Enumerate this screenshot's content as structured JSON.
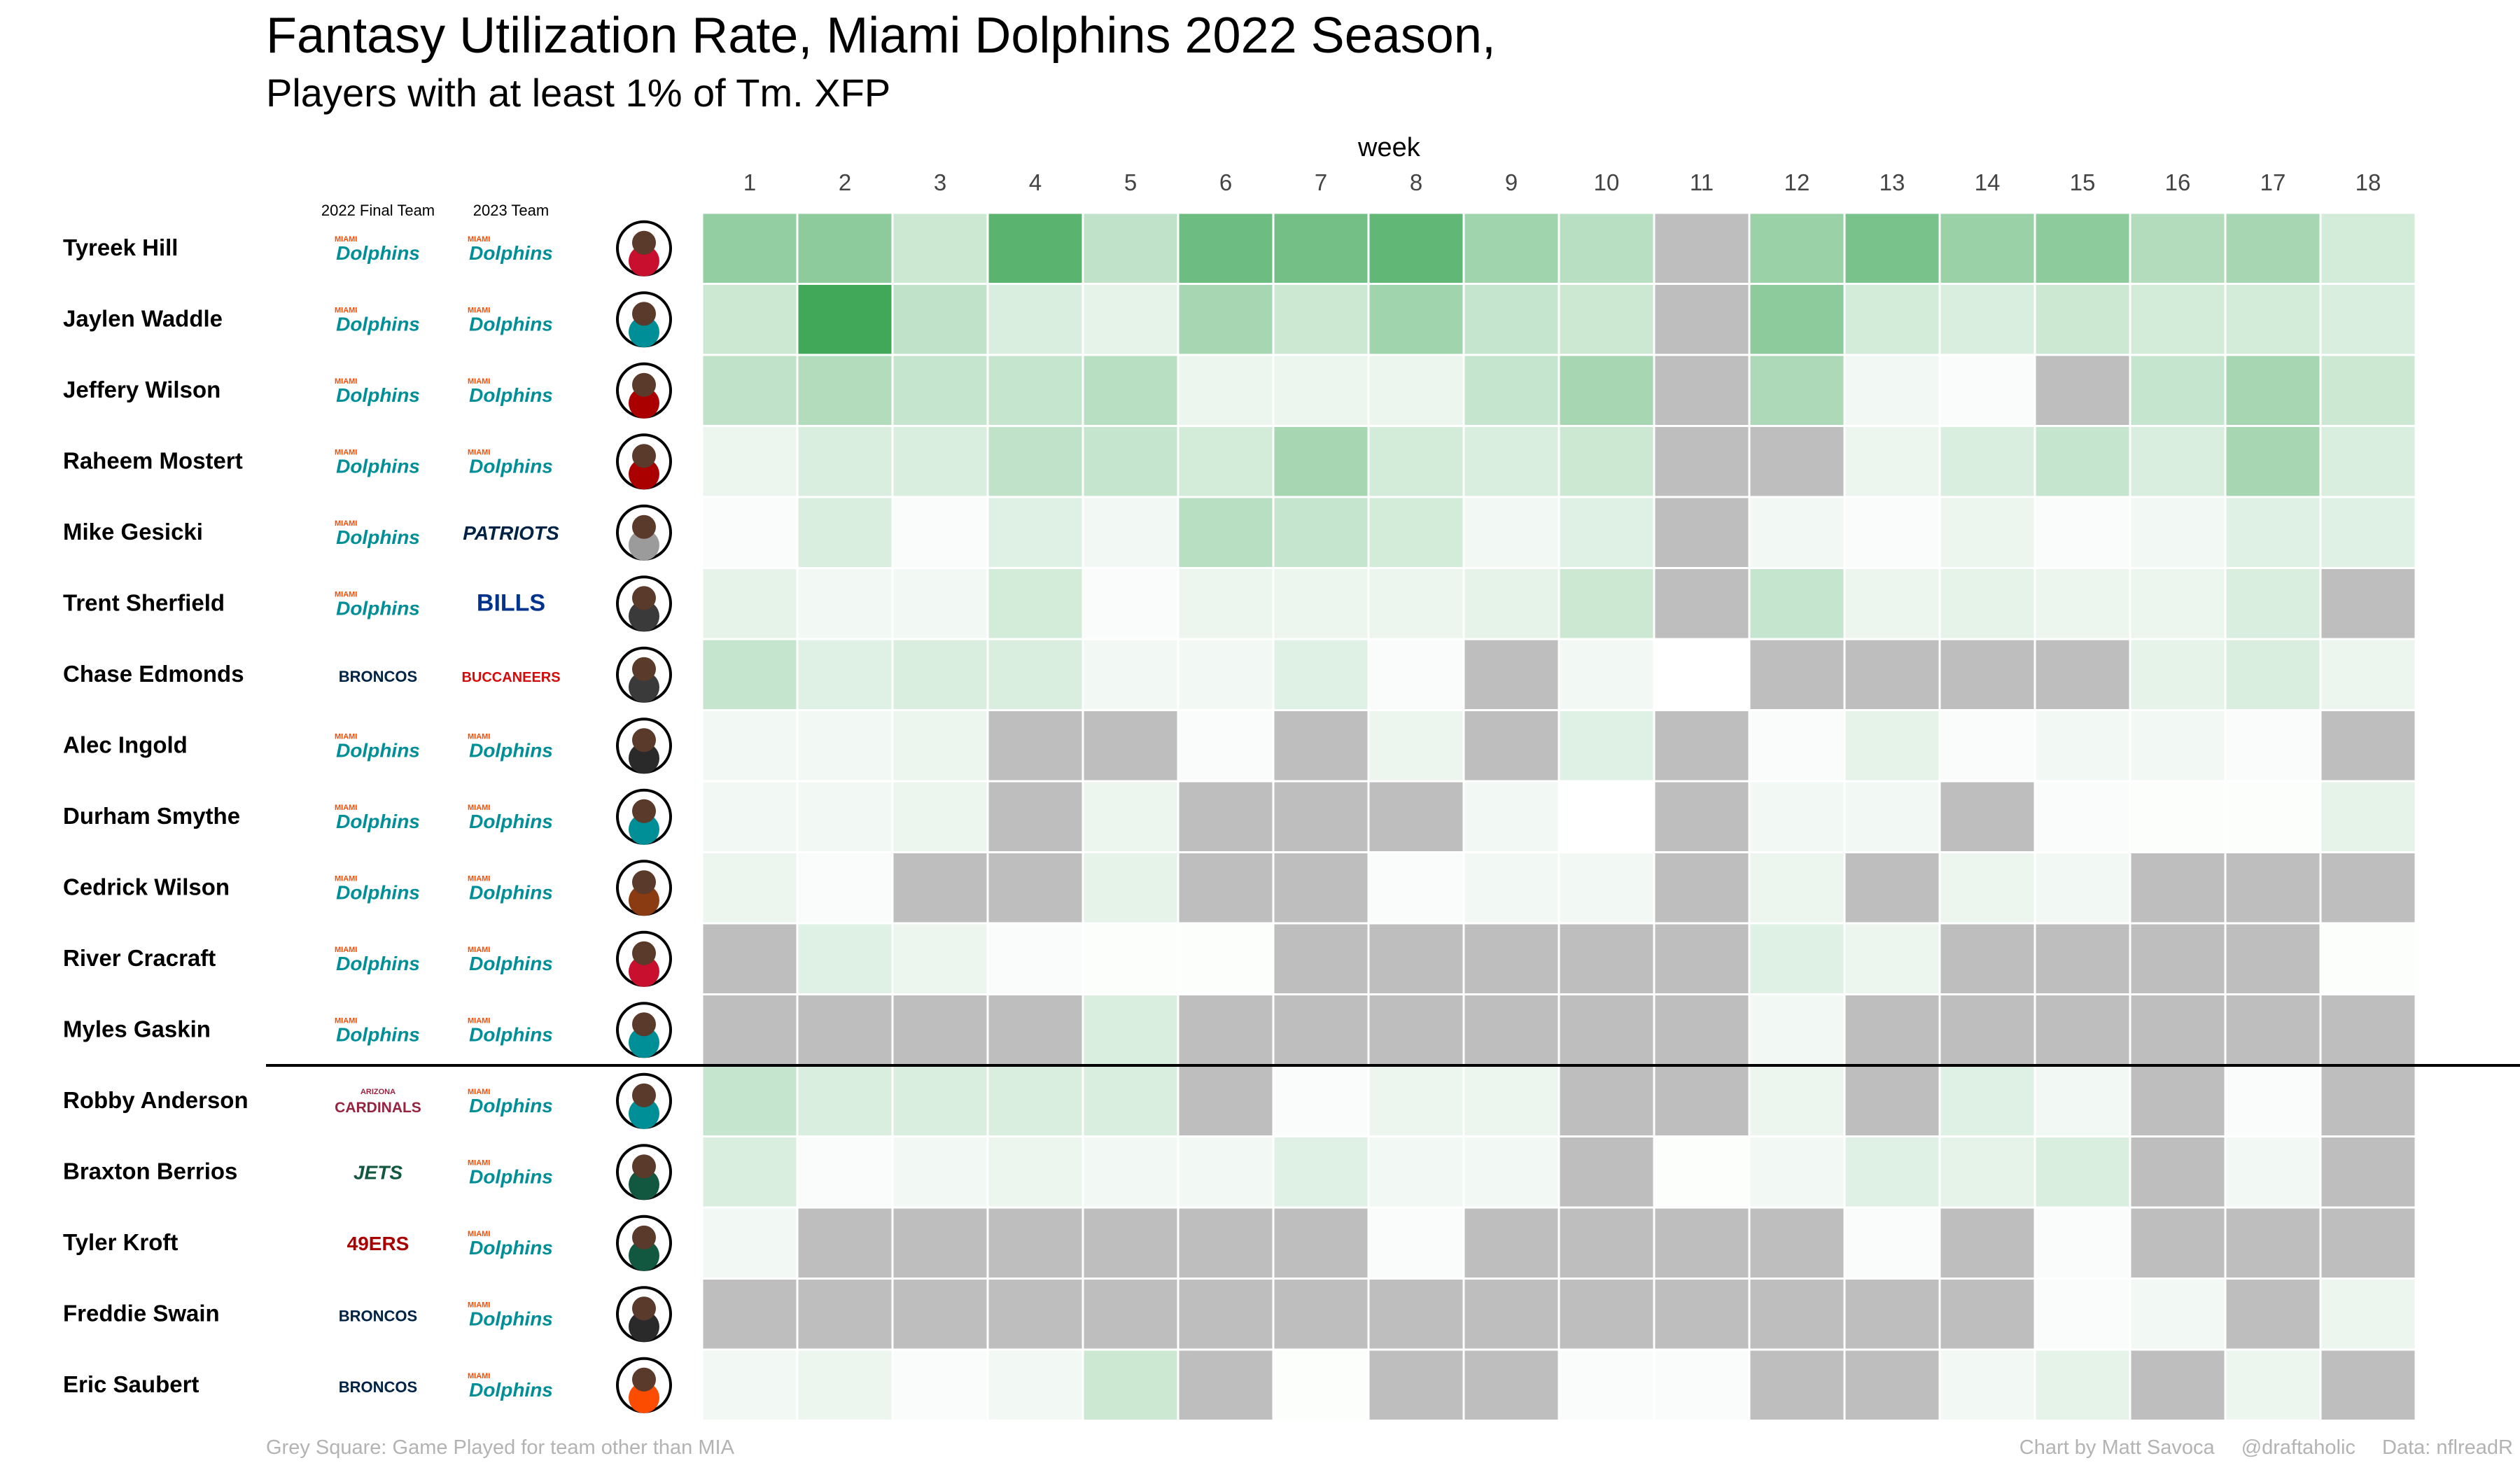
{
  "title": "Fantasy Utilization Rate, Miami Dolphins 2022 Season,",
  "subtitle": "Players with at least 1% of Tm. XFP",
  "column_headers": {
    "final_team": "2022 Final Team",
    "team_2023": "2023 Team"
  },
  "footer": {
    "note": "Grey Square: Game Played for team other than MIA",
    "credit": "Chart by Matt Savoca",
    "handle": "@draftaholic",
    "source": "Data: nflreadR"
  },
  "colors": {
    "na": "#bebebe",
    "low": "#ffffff",
    "high": "#41a85a",
    "dolphins": "#008e97",
    "dolphins_orange": "#fc4c02",
    "patriots": "#002244",
    "bills": "#00338d",
    "broncos": "#002244",
    "buccaneers": "#d50a0a",
    "cardinals": "#97233f",
    "jets": "#125740",
    "niners": "#aa0000"
  },
  "chart_data": {
    "type": "heatmap",
    "xlabel": "week",
    "ylabel": "",
    "categories": [
      "1",
      "2",
      "3",
      "4",
      "5",
      "6",
      "7",
      "8",
      "9",
      "10",
      "11",
      "12",
      "13",
      "14",
      "15",
      "16",
      "17",
      "18"
    ],
    "scale_max": 0.3,
    "rows": [
      {
        "name": "Tyreek Hill",
        "team_2022": "Dolphins",
        "team_2023": "Dolphins",
        "headshot_bg": "#c8102e",
        "values": [
          0.17,
          0.18,
          0.08,
          0.26,
          0.1,
          0.23,
          0.22,
          0.25,
          0.15,
          0.11,
          null,
          0.16,
          0.21,
          0.16,
          0.18,
          0.12,
          0.14,
          0.07
        ]
      },
      {
        "name": "Jaylen Waddle",
        "team_2022": "Dolphins",
        "team_2023": "Dolphins",
        "headshot_bg": "#008e97",
        "values": [
          0.08,
          0.3,
          0.1,
          0.06,
          0.04,
          0.14,
          0.08,
          0.15,
          0.09,
          0.08,
          null,
          0.18,
          0.07,
          0.06,
          0.08,
          0.07,
          0.07,
          0.06
        ]
      },
      {
        "name": "Jeffery Wilson",
        "team_2022": "Dolphins",
        "team_2023": "Dolphins",
        "headshot_bg": "#aa0000",
        "values": [
          0.1,
          0.12,
          0.09,
          0.09,
          0.11,
          0.03,
          0.03,
          0.03,
          0.09,
          0.14,
          null,
          0.13,
          0.02,
          0.01,
          null,
          0.09,
          0.14,
          0.08
        ]
      },
      {
        "name": "Raheem Mostert",
        "team_2022": "Dolphins",
        "team_2023": "Dolphins",
        "headshot_bg": "#aa0000",
        "values": [
          0.03,
          0.06,
          0.06,
          0.1,
          0.09,
          0.07,
          0.14,
          0.07,
          0.06,
          0.08,
          null,
          null,
          0.03,
          0.06,
          0.09,
          0.06,
          0.14,
          0.06
        ]
      },
      {
        "name": "Mike Gesicki",
        "team_2022": "Dolphins",
        "team_2023": "Patriots",
        "headshot_bg": "#9b9b9b",
        "values": [
          0.01,
          0.06,
          0.01,
          0.05,
          0.02,
          0.11,
          0.09,
          0.07,
          0.02,
          0.05,
          null,
          0.02,
          0.01,
          0.03,
          0.01,
          0.02,
          0.05,
          0.05
        ]
      },
      {
        "name": "Trent Sherfield",
        "team_2022": "Dolphins",
        "team_2023": "Bills",
        "headshot_bg": "#3a3a3a",
        "values": [
          0.04,
          0.02,
          0.02,
          0.07,
          0.01,
          0.03,
          0.03,
          0.03,
          0.04,
          0.08,
          null,
          0.09,
          0.03,
          0.04,
          0.03,
          0.03,
          0.06,
          null
        ]
      },
      {
        "name": "Chase Edmonds",
        "team_2022": "Broncos",
        "team_2023": "Buccaneers",
        "headshot_bg": "#3a3a3a",
        "values": [
          0.09,
          0.05,
          0.06,
          0.06,
          0.02,
          0.02,
          0.05,
          0.01,
          null,
          0.02,
          0.0,
          null,
          null,
          null,
          null,
          0.04,
          0.06,
          0.03
        ]
      },
      {
        "name": "Alec Ingold",
        "team_2022": "Dolphins",
        "team_2023": "Dolphins",
        "headshot_bg": "#2a2a2a",
        "values": [
          0.02,
          0.02,
          0.03,
          null,
          null,
          0.01,
          null,
          0.03,
          null,
          0.05,
          null,
          0.01,
          0.04,
          0.01,
          0.02,
          0.02,
          0.01,
          null
        ]
      },
      {
        "name": "Durham Smythe",
        "team_2022": "Dolphins",
        "team_2023": "Dolphins",
        "headshot_bg": "#008e97",
        "values": [
          0.02,
          0.02,
          0.03,
          null,
          0.03,
          null,
          null,
          null,
          0.02,
          0.0,
          null,
          0.02,
          0.02,
          null,
          0.01,
          0.005,
          0.005,
          0.04
        ]
      },
      {
        "name": "Cedrick Wilson",
        "team_2022": "Dolphins",
        "team_2023": "Dolphins",
        "headshot_bg": "#8a3b12",
        "values": [
          0.03,
          0.01,
          null,
          null,
          0.04,
          null,
          null,
          0.01,
          0.02,
          0.02,
          null,
          0.03,
          null,
          0.03,
          0.02,
          null,
          null,
          null
        ]
      },
      {
        "name": "River Cracraft",
        "team_2022": "Dolphins",
        "team_2023": "Dolphins",
        "headshot_bg": "#c8102e",
        "values": [
          null,
          0.05,
          0.03,
          0.01,
          0.005,
          0.005,
          null,
          null,
          null,
          null,
          null,
          0.05,
          0.03,
          null,
          null,
          null,
          null,
          0.005
        ]
      },
      {
        "name": "Myles Gaskin",
        "team_2022": "Dolphins",
        "team_2023": "Dolphins",
        "headshot_bg": "#008e97",
        "values": [
          null,
          null,
          null,
          null,
          0.06,
          null,
          null,
          null,
          null,
          null,
          null,
          0.02,
          null,
          null,
          null,
          null,
          null,
          null
        ]
      },
      {
        "name": "Robby Anderson",
        "team_2022": "Cardinals",
        "team_2023": "Dolphins",
        "headshot_bg": "#008e97",
        "values": [
          0.09,
          0.06,
          0.06,
          0.06,
          0.06,
          null,
          0.01,
          0.03,
          0.03,
          null,
          null,
          0.03,
          null,
          0.05,
          0.02,
          null,
          0.01,
          null
        ]
      },
      {
        "name": "Braxton Berrios",
        "team_2022": "Jets",
        "team_2023": "Dolphins",
        "headshot_bg": "#125740",
        "values": [
          0.06,
          0.01,
          0.02,
          0.03,
          0.02,
          0.02,
          0.05,
          0.02,
          0.02,
          null,
          0.005,
          0.02,
          0.05,
          0.04,
          0.06,
          null,
          0.02,
          null
        ]
      },
      {
        "name": "Tyler Kroft",
        "team_2022": "49ers",
        "team_2023": "Dolphins",
        "headshot_bg": "#125740",
        "values": [
          0.02,
          null,
          null,
          null,
          null,
          null,
          null,
          0.01,
          null,
          null,
          null,
          null,
          0.01,
          null,
          0.01,
          null,
          null,
          null
        ]
      },
      {
        "name": "Freddie Swain",
        "team_2022": "Broncos",
        "team_2023": "Dolphins",
        "headshot_bg": "#2a2a2a",
        "values": [
          null,
          null,
          null,
          null,
          null,
          null,
          null,
          null,
          null,
          null,
          null,
          null,
          null,
          null,
          0.01,
          0.02,
          null,
          0.03
        ]
      },
      {
        "name": "Eric Saubert",
        "team_2022": "Broncos",
        "team_2023": "Dolphins",
        "headshot_bg": "#fc4c02",
        "values": [
          0.02,
          0.03,
          0.01,
          0.02,
          0.08,
          null,
          0.005,
          null,
          null,
          0.01,
          0.01,
          null,
          null,
          0.02,
          0.04,
          null,
          0.03,
          null
        ]
      }
    ],
    "divider_after_row": 11,
    "na_meaning": "Grey Square: Game Played for team other than MIA"
  }
}
